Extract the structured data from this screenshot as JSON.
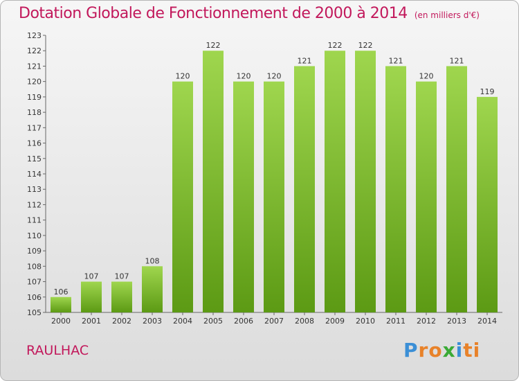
{
  "header": {
    "title": "Dotation Globale de Fonctionnement de 2000 à 2014",
    "unit": "(en milliers d'€)"
  },
  "footer": {
    "commune": "RAULHAC",
    "logo": [
      "P",
      "r",
      "o",
      "x",
      "i",
      "ti"
    ]
  },
  "colors": {
    "title": "#c2185b",
    "bar_top": "#9fd64e",
    "bar_bottom": "#5c9a14"
  },
  "chart_data": {
    "type": "bar",
    "categories": [
      "2000",
      "2001",
      "2002",
      "2003",
      "2004",
      "2005",
      "2006",
      "2007",
      "2008",
      "2009",
      "2010",
      "2011",
      "2012",
      "2013",
      "2014"
    ],
    "values": [
      106,
      107,
      107,
      108,
      120,
      122,
      120,
      120,
      121,
      122,
      122,
      121,
      120,
      121,
      119
    ],
    "ylim": [
      105,
      123
    ],
    "yticks": [
      105,
      106,
      107,
      108,
      109,
      110,
      111,
      112,
      113,
      114,
      115,
      116,
      117,
      118,
      119,
      120,
      121,
      122,
      123
    ],
    "grid": false,
    "legend": "none"
  }
}
